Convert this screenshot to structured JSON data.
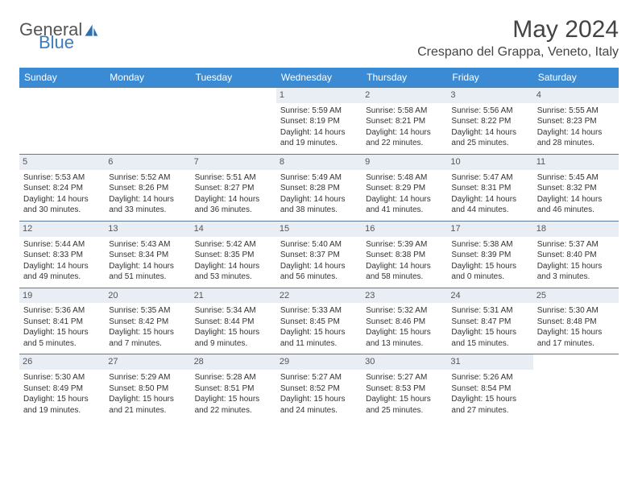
{
  "brand": {
    "part1": "General",
    "part2": "Blue"
  },
  "title": "May 2024",
  "location": "Crespano del Grappa, Veneto, Italy",
  "colors": {
    "header_bg": "#3b8bd4",
    "header_text": "#ffffff",
    "daynum_bg": "#e8eef4",
    "week_border": "#5a7a9a",
    "brand_blue": "#3b7bbf"
  },
  "weekdays": [
    "Sunday",
    "Monday",
    "Tuesday",
    "Wednesday",
    "Thursday",
    "Friday",
    "Saturday"
  ],
  "weeks": [
    [
      {
        "n": "",
        "empty": true
      },
      {
        "n": "",
        "empty": true
      },
      {
        "n": "",
        "empty": true
      },
      {
        "n": "1",
        "sr": "Sunrise: 5:59 AM",
        "ss": "Sunset: 8:19 PM",
        "dl1": "Daylight: 14 hours",
        "dl2": "and 19 minutes."
      },
      {
        "n": "2",
        "sr": "Sunrise: 5:58 AM",
        "ss": "Sunset: 8:21 PM",
        "dl1": "Daylight: 14 hours",
        "dl2": "and 22 minutes."
      },
      {
        "n": "3",
        "sr": "Sunrise: 5:56 AM",
        "ss": "Sunset: 8:22 PM",
        "dl1": "Daylight: 14 hours",
        "dl2": "and 25 minutes."
      },
      {
        "n": "4",
        "sr": "Sunrise: 5:55 AM",
        "ss": "Sunset: 8:23 PM",
        "dl1": "Daylight: 14 hours",
        "dl2": "and 28 minutes."
      }
    ],
    [
      {
        "n": "5",
        "sr": "Sunrise: 5:53 AM",
        "ss": "Sunset: 8:24 PM",
        "dl1": "Daylight: 14 hours",
        "dl2": "and 30 minutes."
      },
      {
        "n": "6",
        "sr": "Sunrise: 5:52 AM",
        "ss": "Sunset: 8:26 PM",
        "dl1": "Daylight: 14 hours",
        "dl2": "and 33 minutes."
      },
      {
        "n": "7",
        "sr": "Sunrise: 5:51 AM",
        "ss": "Sunset: 8:27 PM",
        "dl1": "Daylight: 14 hours",
        "dl2": "and 36 minutes."
      },
      {
        "n": "8",
        "sr": "Sunrise: 5:49 AM",
        "ss": "Sunset: 8:28 PM",
        "dl1": "Daylight: 14 hours",
        "dl2": "and 38 minutes."
      },
      {
        "n": "9",
        "sr": "Sunrise: 5:48 AM",
        "ss": "Sunset: 8:29 PM",
        "dl1": "Daylight: 14 hours",
        "dl2": "and 41 minutes."
      },
      {
        "n": "10",
        "sr": "Sunrise: 5:47 AM",
        "ss": "Sunset: 8:31 PM",
        "dl1": "Daylight: 14 hours",
        "dl2": "and 44 minutes."
      },
      {
        "n": "11",
        "sr": "Sunrise: 5:45 AM",
        "ss": "Sunset: 8:32 PM",
        "dl1": "Daylight: 14 hours",
        "dl2": "and 46 minutes."
      }
    ],
    [
      {
        "n": "12",
        "sr": "Sunrise: 5:44 AM",
        "ss": "Sunset: 8:33 PM",
        "dl1": "Daylight: 14 hours",
        "dl2": "and 49 minutes."
      },
      {
        "n": "13",
        "sr": "Sunrise: 5:43 AM",
        "ss": "Sunset: 8:34 PM",
        "dl1": "Daylight: 14 hours",
        "dl2": "and 51 minutes."
      },
      {
        "n": "14",
        "sr": "Sunrise: 5:42 AM",
        "ss": "Sunset: 8:35 PM",
        "dl1": "Daylight: 14 hours",
        "dl2": "and 53 minutes."
      },
      {
        "n": "15",
        "sr": "Sunrise: 5:40 AM",
        "ss": "Sunset: 8:37 PM",
        "dl1": "Daylight: 14 hours",
        "dl2": "and 56 minutes."
      },
      {
        "n": "16",
        "sr": "Sunrise: 5:39 AM",
        "ss": "Sunset: 8:38 PM",
        "dl1": "Daylight: 14 hours",
        "dl2": "and 58 minutes."
      },
      {
        "n": "17",
        "sr": "Sunrise: 5:38 AM",
        "ss": "Sunset: 8:39 PM",
        "dl1": "Daylight: 15 hours",
        "dl2": "and 0 minutes."
      },
      {
        "n": "18",
        "sr": "Sunrise: 5:37 AM",
        "ss": "Sunset: 8:40 PM",
        "dl1": "Daylight: 15 hours",
        "dl2": "and 3 minutes."
      }
    ],
    [
      {
        "n": "19",
        "sr": "Sunrise: 5:36 AM",
        "ss": "Sunset: 8:41 PM",
        "dl1": "Daylight: 15 hours",
        "dl2": "and 5 minutes."
      },
      {
        "n": "20",
        "sr": "Sunrise: 5:35 AM",
        "ss": "Sunset: 8:42 PM",
        "dl1": "Daylight: 15 hours",
        "dl2": "and 7 minutes."
      },
      {
        "n": "21",
        "sr": "Sunrise: 5:34 AM",
        "ss": "Sunset: 8:44 PM",
        "dl1": "Daylight: 15 hours",
        "dl2": "and 9 minutes."
      },
      {
        "n": "22",
        "sr": "Sunrise: 5:33 AM",
        "ss": "Sunset: 8:45 PM",
        "dl1": "Daylight: 15 hours",
        "dl2": "and 11 minutes."
      },
      {
        "n": "23",
        "sr": "Sunrise: 5:32 AM",
        "ss": "Sunset: 8:46 PM",
        "dl1": "Daylight: 15 hours",
        "dl2": "and 13 minutes."
      },
      {
        "n": "24",
        "sr": "Sunrise: 5:31 AM",
        "ss": "Sunset: 8:47 PM",
        "dl1": "Daylight: 15 hours",
        "dl2": "and 15 minutes."
      },
      {
        "n": "25",
        "sr": "Sunrise: 5:30 AM",
        "ss": "Sunset: 8:48 PM",
        "dl1": "Daylight: 15 hours",
        "dl2": "and 17 minutes."
      }
    ],
    [
      {
        "n": "26",
        "sr": "Sunrise: 5:30 AM",
        "ss": "Sunset: 8:49 PM",
        "dl1": "Daylight: 15 hours",
        "dl2": "and 19 minutes."
      },
      {
        "n": "27",
        "sr": "Sunrise: 5:29 AM",
        "ss": "Sunset: 8:50 PM",
        "dl1": "Daylight: 15 hours",
        "dl2": "and 21 minutes."
      },
      {
        "n": "28",
        "sr": "Sunrise: 5:28 AM",
        "ss": "Sunset: 8:51 PM",
        "dl1": "Daylight: 15 hours",
        "dl2": "and 22 minutes."
      },
      {
        "n": "29",
        "sr": "Sunrise: 5:27 AM",
        "ss": "Sunset: 8:52 PM",
        "dl1": "Daylight: 15 hours",
        "dl2": "and 24 minutes."
      },
      {
        "n": "30",
        "sr": "Sunrise: 5:27 AM",
        "ss": "Sunset: 8:53 PM",
        "dl1": "Daylight: 15 hours",
        "dl2": "and 25 minutes."
      },
      {
        "n": "31",
        "sr": "Sunrise: 5:26 AM",
        "ss": "Sunset: 8:54 PM",
        "dl1": "Daylight: 15 hours",
        "dl2": "and 27 minutes."
      },
      {
        "n": "",
        "empty": true
      }
    ]
  ]
}
